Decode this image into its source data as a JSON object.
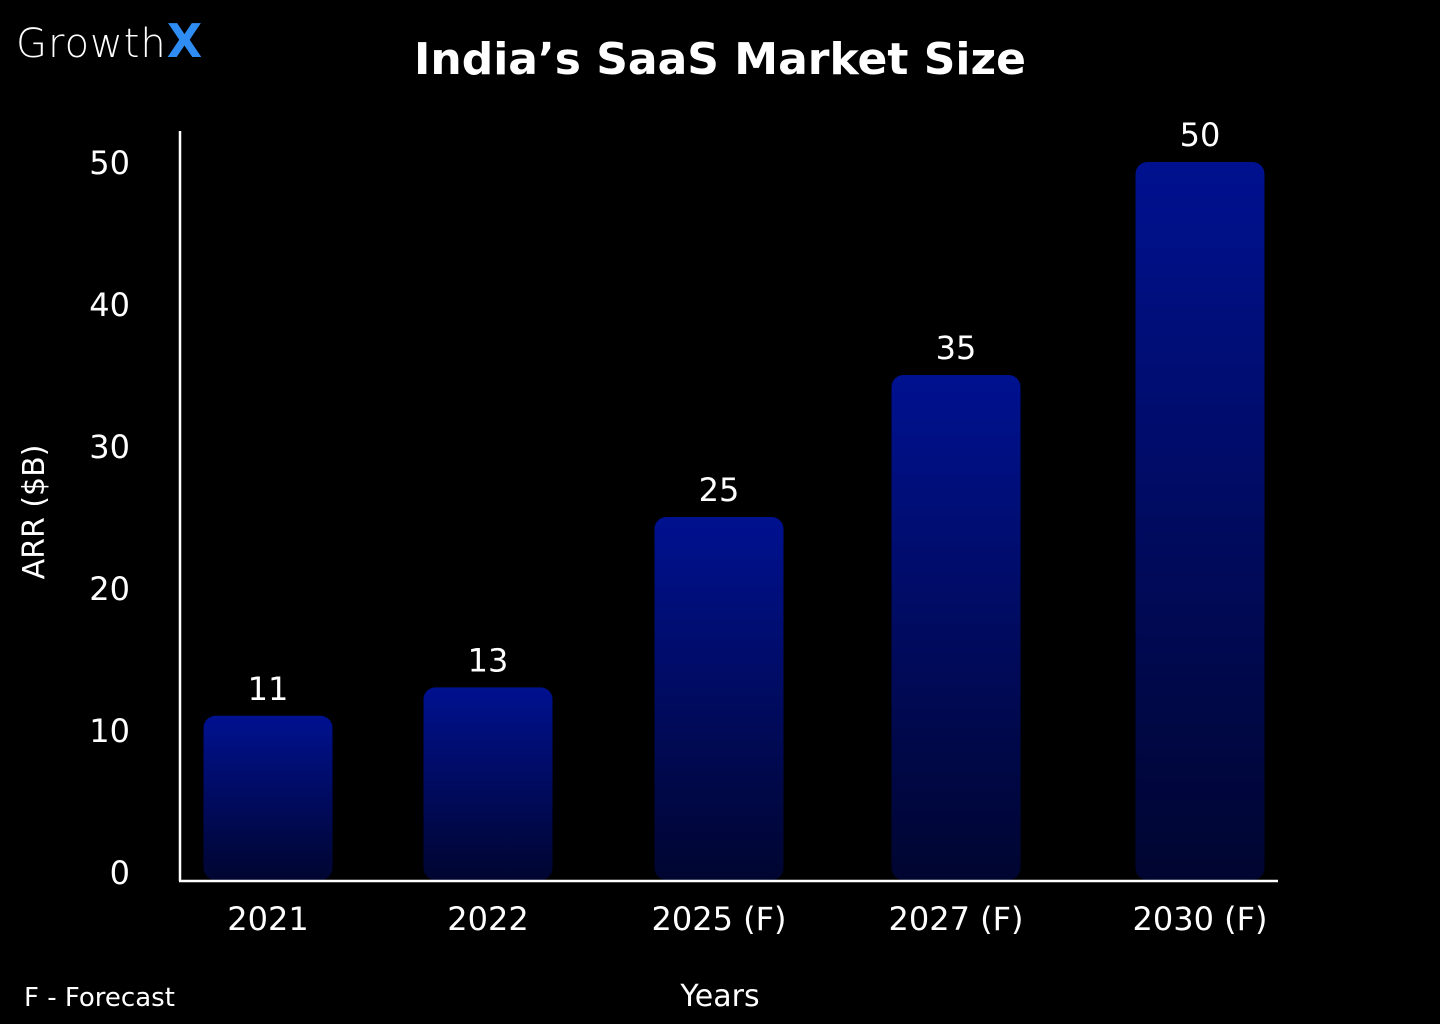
{
  "brand": {
    "name": "Growth",
    "accent_letter": "X",
    "accent_color": "#2f8cf2"
  },
  "footnote": "F - Forecast",
  "chart_data": {
    "type": "bar",
    "title": "India’s SaaS Market Size",
    "xlabel": "Years",
    "ylabel": "ARR ($B)",
    "categories": [
      "2021",
      "2022",
      "2025 (F)",
      "2027 (F)",
      "2030 (F)"
    ],
    "values": [
      11,
      13,
      25,
      35,
      50
    ],
    "yticks": [
      0,
      10,
      20,
      30,
      40,
      50
    ],
    "ylim": [
      0,
      50
    ],
    "grid": false,
    "bar_color_top": "#001190",
    "bar_color_bottom": "#000530",
    "background": "#000000"
  }
}
